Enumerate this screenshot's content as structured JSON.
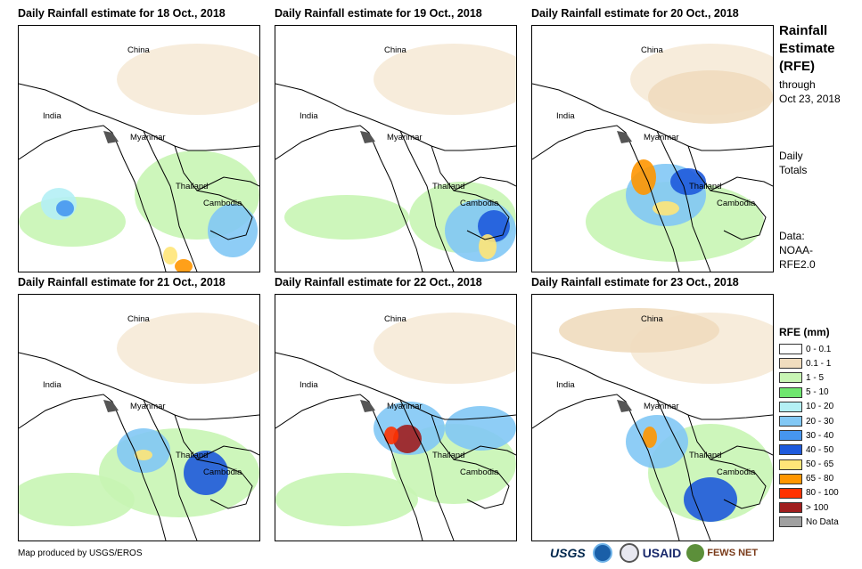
{
  "panels": [
    {
      "title": "Daily Rainfall estimate for 18 Oct., 2018"
    },
    {
      "title": "Daily Rainfall estimate for 19 Oct., 2018"
    },
    {
      "title": "Daily Rainfall estimate for 20 Oct., 2018"
    },
    {
      "title": "Daily Rainfall estimate for 21 Oct., 2018"
    },
    {
      "title": "Daily Rainfall estimate for 22 Oct., 2018"
    },
    {
      "title": "Daily Rainfall estimate for 23 Oct., 2018"
    }
  ],
  "map_labels": {
    "china": "China",
    "india": "India",
    "myanmar": "Myanmar",
    "thailand": "Thailand",
    "cambodia": "Cambodia"
  },
  "sidebar": {
    "title_line1": "Rainfall",
    "title_line2": "Estimate",
    "title_line3": "(RFE)",
    "through_line1": "through",
    "through_line2": "Oct 23, 2018",
    "daily_line1": "Daily",
    "daily_line2": "Totals",
    "data_line1": "Data:",
    "data_line2": "NOAA-",
    "data_line3": "RFE2.0"
  },
  "legend": {
    "title": "RFE (mm)",
    "items": [
      {
        "label": "0 - 0.1",
        "color": "#ffffff"
      },
      {
        "label": "0.1 - 1",
        "color": "#f0dcbe"
      },
      {
        "label": "1 - 5",
        "color": "#c8f5b4"
      },
      {
        "label": "5 - 10",
        "color": "#6ee66e"
      },
      {
        "label": "10 - 20",
        "color": "#b4f0f5"
      },
      {
        "label": "20 - 30",
        "color": "#82c8f5"
      },
      {
        "label": "30 - 40",
        "color": "#4696f0"
      },
      {
        "label": "40 - 50",
        "color": "#1e5adc"
      },
      {
        "label": "50 - 65",
        "color": "#ffe678"
      },
      {
        "label": "65 - 80",
        "color": "#ff9600"
      },
      {
        "label": "80 - 100",
        "color": "#ff3200"
      },
      {
        "label": "> 100",
        "color": "#a01e1e"
      },
      {
        "label": "No Data",
        "color": "#a0a0a0"
      }
    ]
  },
  "footer": {
    "credit": "Map produced by USGS/EROS",
    "logo_usgs": "USGS",
    "logo_usaid": "USAID",
    "logo_fews": "FEWS NET"
  }
}
